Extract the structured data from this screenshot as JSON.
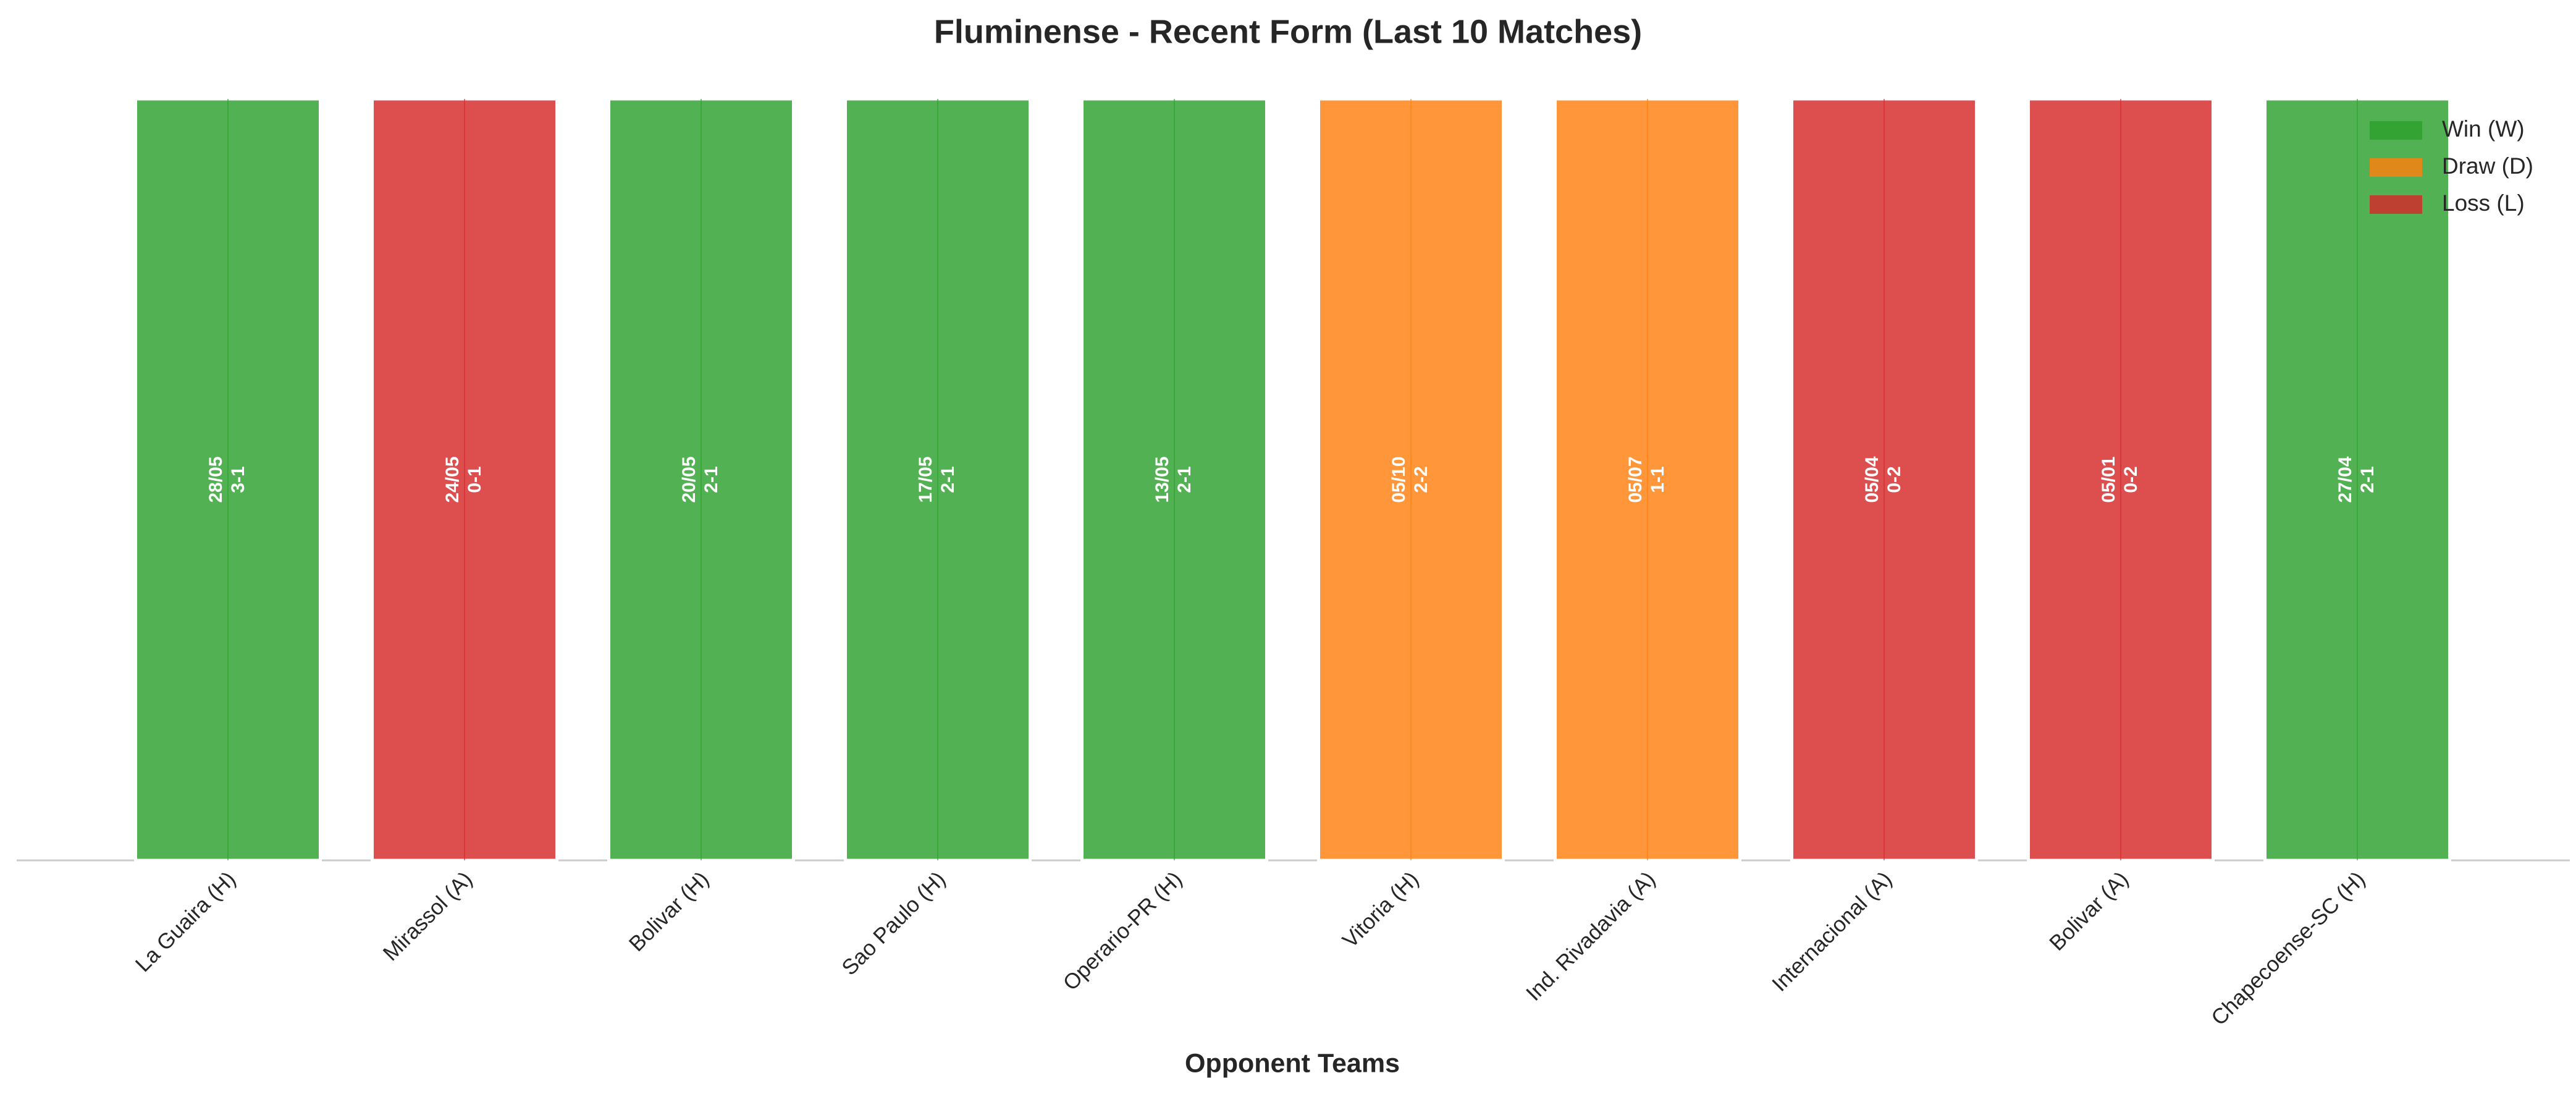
{
  "chart_data": {
    "type": "bar",
    "title": "Fluminense - Recent Form (Last 10 Matches)",
    "xlabel": "Opponent Teams",
    "categories": [
      "La Guaira (H)",
      "Mirassol (A)",
      "Bolivar (H)",
      "Sao Paulo (H)",
      "Operario-PR (H)",
      "Vitoria (H)",
      "Ind. Rivadavia (A)",
      "Internacional (A)",
      "Bolivar (A)",
      "Chapecoense-SC (H)"
    ],
    "values": [
      1,
      1,
      1,
      1,
      1,
      1,
      1,
      1,
      1,
      1
    ],
    "dates": [
      "28/05",
      "24/05",
      "20/05",
      "17/05",
      "13/05",
      "05/10",
      "05/07",
      "05/04",
      "05/01",
      "27/04"
    ],
    "scores": [
      "3-1",
      "0-1",
      "2-1",
      "2-1",
      "2-1",
      "2-2",
      "1-1",
      "0-2",
      "0-2",
      "2-1"
    ],
    "bar_colors": [
      "#2ca02c",
      "#d62728",
      "#2ca02c",
      "#2ca02c",
      "#2ca02c",
      "#ff7f0e",
      "#ff7f0e",
      "#d62728",
      "#d62728",
      "#2ca02c"
    ],
    "ylim": [
      0,
      1
    ],
    "legend": {
      "position": "upper right",
      "entries": [
        {
          "name": "Win (W)",
          "color": "#2ca02c"
        },
        {
          "name": "Draw (D)",
          "color": "#ff7f0e"
        },
        {
          "name": "Loss (L)",
          "color": "#d62728"
        }
      ]
    }
  }
}
